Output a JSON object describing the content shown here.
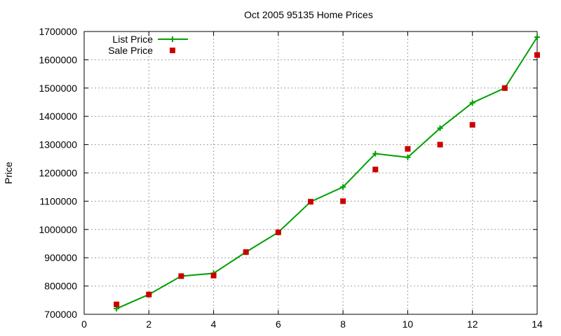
{
  "chart_data": {
    "type": "line",
    "title": "Oct 2005 95135 Home Prices",
    "xlabel": "",
    "ylabel": "Price",
    "xlim": [
      0,
      14
    ],
    "ylim": [
      700000,
      1700000
    ],
    "x_ticks": [
      0,
      2,
      4,
      6,
      8,
      10,
      12,
      14
    ],
    "y_ticks": [
      700000,
      800000,
      900000,
      1000000,
      1100000,
      1200000,
      1300000,
      1400000,
      1500000,
      1600000,
      1700000
    ],
    "grid": true,
    "legend": "top-left",
    "series": [
      {
        "name": "List Price",
        "style": "line-plus",
        "color": "#00a000",
        "points": [
          [
            1,
            720000
          ],
          [
            2,
            770000
          ],
          [
            3,
            835000
          ],
          [
            4,
            845000
          ],
          [
            5,
            920000
          ],
          [
            6,
            990000
          ],
          [
            7,
            1098000
          ],
          [
            8,
            1150000
          ],
          [
            9,
            1268000
          ],
          [
            10,
            1255000
          ],
          [
            11,
            1358000
          ],
          [
            12,
            1448000
          ],
          [
            13,
            1500000
          ],
          [
            14,
            1680000
          ]
        ]
      },
      {
        "name": "Sale Price",
        "style": "square",
        "color": "#cc0000",
        "points": [
          [
            1,
            735000
          ],
          [
            2,
            770000
          ],
          [
            3,
            835000
          ],
          [
            4,
            837000
          ],
          [
            5,
            920000
          ],
          [
            6,
            990000
          ],
          [
            7,
            1098000
          ],
          [
            8,
            1100000
          ],
          [
            9,
            1212000
          ],
          [
            10,
            1285000
          ],
          [
            11,
            1300000
          ],
          [
            12,
            1370000
          ],
          [
            13,
            1500000
          ],
          [
            14,
            1617000
          ]
        ]
      }
    ]
  }
}
